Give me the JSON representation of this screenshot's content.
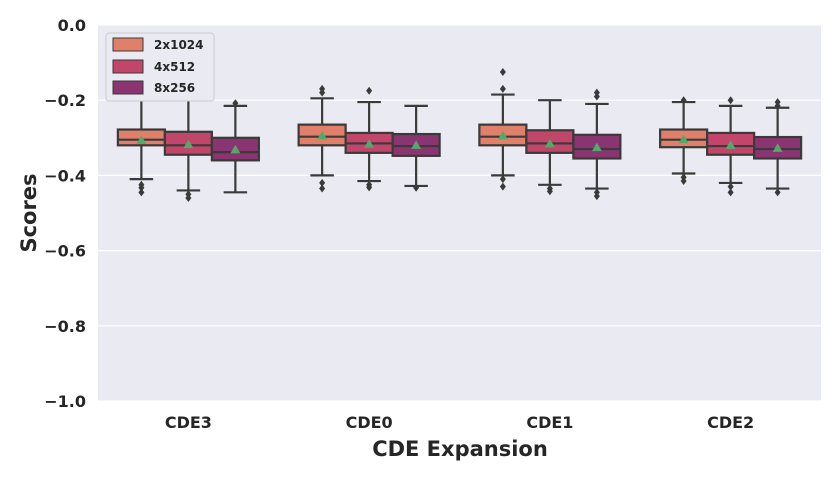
{
  "chart_data": {
    "type": "box",
    "title": "",
    "xlabel": "CDE Expansion",
    "ylabel": "Scores",
    "ylim": [
      -1.0,
      0.0
    ],
    "yticks": [
      0.0,
      -0.2,
      -0.4,
      -0.6,
      -0.8,
      -1.0
    ],
    "ytick_labels": [
      "0.0",
      "−0.2",
      "−0.4",
      "−0.6",
      "−0.8",
      "−1.0"
    ],
    "categories": [
      "CDE3",
      "CDE0",
      "CDE1",
      "CDE2"
    ],
    "grid": true,
    "legend_position": "top-left",
    "series": [
      {
        "name": "2x1024",
        "color": "#e0806a",
        "boxes": [
          {
            "q1": -0.32,
            "median": -0.305,
            "q3": -0.278,
            "whisker_low": -0.41,
            "whisker_high": -0.198,
            "mean": -0.307,
            "outliers": [
              -0.425,
              -0.433,
              -0.445
            ]
          },
          {
            "q1": -0.32,
            "median": -0.297,
            "q3": -0.265,
            "whisker_low": -0.4,
            "whisker_high": -0.195,
            "mean": -0.295,
            "outliers": [
              -0.17,
              -0.18,
              -0.42,
              -0.435
            ]
          },
          {
            "q1": -0.32,
            "median": -0.297,
            "q3": -0.265,
            "whisker_low": -0.4,
            "whisker_high": -0.185,
            "mean": -0.295,
            "outliers": [
              -0.125,
              -0.17,
              -0.41,
              -0.43
            ]
          },
          {
            "q1": -0.325,
            "median": -0.305,
            "q3": -0.278,
            "whisker_low": -0.395,
            "whisker_high": -0.205,
            "mean": -0.305,
            "outliers": [
              -0.2,
              -0.405,
              -0.415
            ]
          }
        ]
      },
      {
        "name": "4x512",
        "color": "#c2466a",
        "boxes": [
          {
            "q1": -0.345,
            "median": -0.32,
            "q3": -0.284,
            "whisker_low": -0.44,
            "whisker_high": -0.195,
            "mean": -0.318,
            "outliers": [
              -0.45,
              -0.46
            ]
          },
          {
            "q1": -0.34,
            "median": -0.315,
            "q3": -0.287,
            "whisker_low": -0.415,
            "whisker_high": -0.205,
            "mean": -0.317,
            "outliers": [
              -0.175,
              -0.425,
              -0.432
            ]
          },
          {
            "q1": -0.34,
            "median": -0.315,
            "q3": -0.28,
            "whisker_low": -0.425,
            "whisker_high": -0.2,
            "mean": -0.316,
            "outliers": [
              -0.435,
              -0.442
            ]
          },
          {
            "q1": -0.345,
            "median": -0.322,
            "q3": -0.287,
            "whisker_low": -0.42,
            "whisker_high": -0.215,
            "mean": -0.32,
            "outliers": [
              -0.2,
              -0.43,
              -0.445
            ]
          }
        ]
      },
      {
        "name": "8x256",
        "color": "#8a3572",
        "boxes": [
          {
            "q1": -0.36,
            "median": -0.338,
            "q3": -0.3,
            "whisker_low": -0.445,
            "whisker_high": -0.215,
            "mean": -0.332,
            "outliers": [
              -0.208
            ]
          },
          {
            "q1": -0.348,
            "median": -0.322,
            "q3": -0.29,
            "whisker_low": -0.428,
            "whisker_high": -0.215,
            "mean": -0.32,
            "outliers": [
              -0.433
            ]
          },
          {
            "q1": -0.355,
            "median": -0.33,
            "q3": -0.292,
            "whisker_low": -0.435,
            "whisker_high": -0.21,
            "mean": -0.326,
            "outliers": [
              -0.18,
              -0.19,
              -0.445,
              -0.455
            ]
          },
          {
            "q1": -0.355,
            "median": -0.33,
            "q3": -0.298,
            "whisker_low": -0.435,
            "whisker_high": -0.22,
            "mean": -0.328,
            "outliers": [
              -0.205,
              -0.215,
              -0.445
            ]
          }
        ]
      }
    ],
    "mean_marker_color": "#55a868"
  }
}
